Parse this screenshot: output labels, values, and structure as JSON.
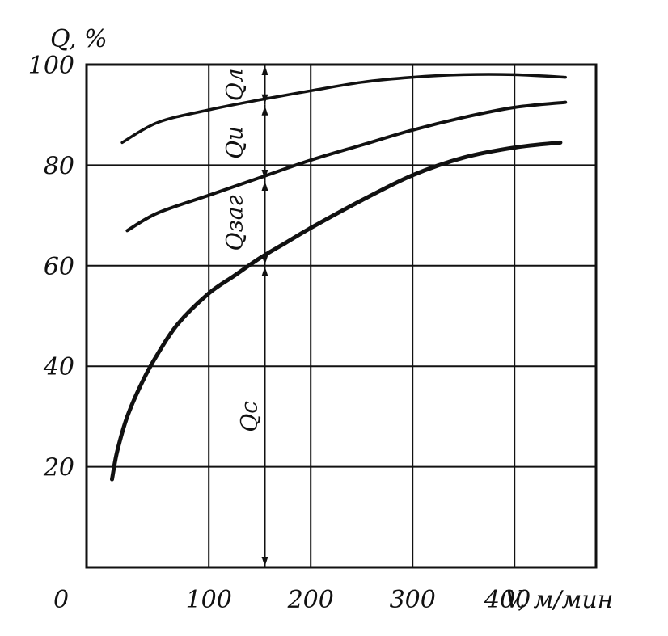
{
  "chart_data": {
    "type": "line",
    "title": "",
    "ylabel": "Q, %",
    "xlabel": "V, м/мин",
    "xlim": [
      -20,
      480
    ],
    "ylim": [
      0,
      100
    ],
    "x_ticks": [
      100,
      200,
      300,
      400
    ],
    "y_ticks": [
      20,
      40,
      60,
      80,
      100
    ],
    "origin_label": "0",
    "x_tick_labels": [
      "100",
      "200",
      "300",
      "400"
    ],
    "y_tick_labels": [
      "20",
      "40",
      "60",
      "80",
      "100"
    ],
    "grid": true,
    "legend": "none",
    "series": [
      {
        "x": [
          15,
          50,
          100,
          150,
          200,
          250,
          300,
          350,
          400,
          450
        ],
        "y": [
          84.5,
          88.5,
          91,
          93,
          94.8,
          96.5,
          97.5,
          98,
          98,
          97.5
        ],
        "stroke_width": 3.5
      },
      {
        "x": [
          20,
          50,
          100,
          150,
          200,
          250,
          300,
          350,
          400,
          450
        ],
        "y": [
          67,
          70.5,
          74,
          77.5,
          81,
          84,
          87,
          89.5,
          91.5,
          92.5
        ],
        "stroke_width": 4
      },
      {
        "x": [
          5,
          10,
          20,
          35,
          50,
          70,
          100,
          125,
          150,
          175,
          200,
          250,
          300,
          350,
          400,
          445
        ],
        "y": [
          17.5,
          23,
          30,
          37,
          42.5,
          48.5,
          54.5,
          58,
          61.5,
          64.5,
          67.5,
          73,
          78,
          81.5,
          83.5,
          84.5
        ],
        "stroke_width": 5
      }
    ],
    "annotations": [
      {
        "label": "Qл",
        "x": 155,
        "y_from": 92,
        "y_to": 100
      },
      {
        "label": "Qи",
        "x": 155,
        "y_from": 77,
        "y_to": 92
      },
      {
        "label": "Qзаг",
        "x": 155,
        "y_from": 60,
        "y_to": 77
      },
      {
        "label": "Qc",
        "x": 155,
        "y_from": 0,
        "y_to": 60
      }
    ]
  }
}
